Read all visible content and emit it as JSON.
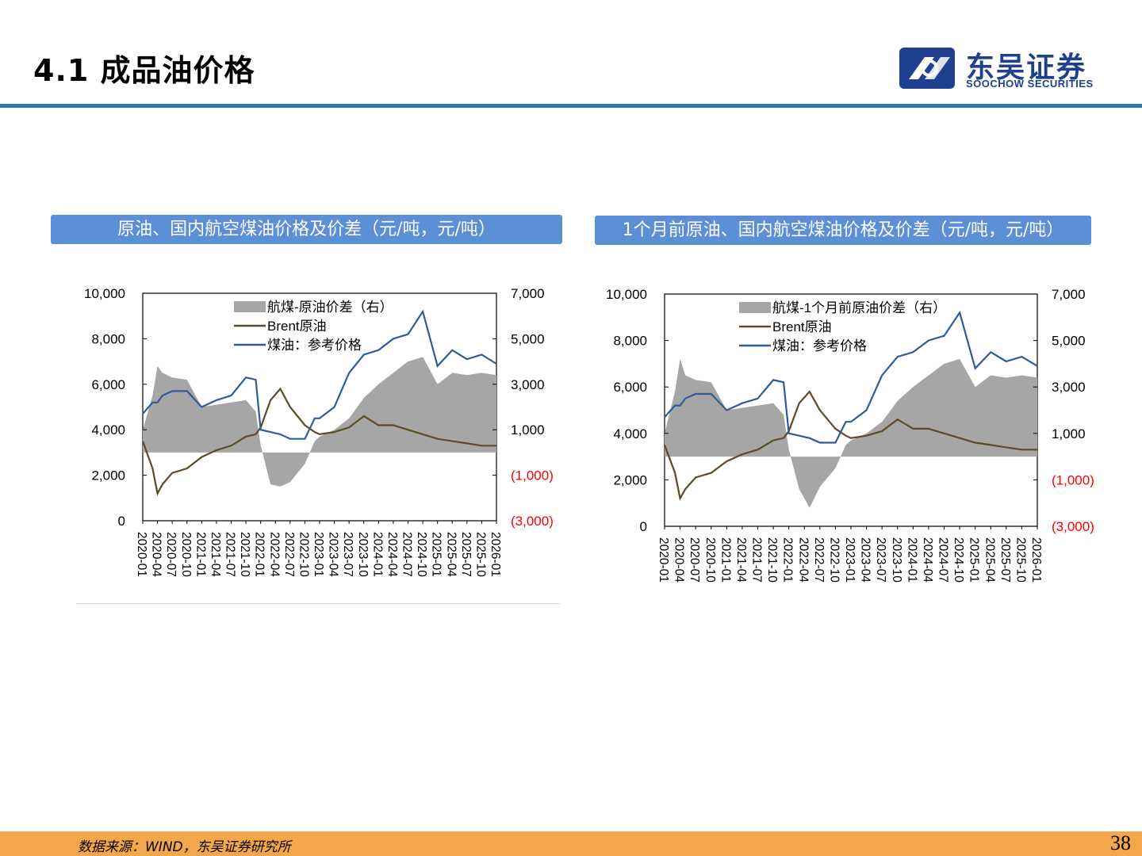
{
  "header": {
    "title": "4.1 成品油价格",
    "logo_cn": "东吴证券",
    "logo_en": "SOOCHOW SECURITIES"
  },
  "colors": {
    "accent_blue": "#2e75b6",
    "header_box": "#5b8fd6",
    "footer": "#f4a64a",
    "spread": "#a6a6a6",
    "brent": "#5c4a2a",
    "jet": "#2f5b9a",
    "negative": "#ff0000"
  },
  "charts": [
    {
      "header": "原油、国内航空煤油价格及价差（元/吨，元/吨）",
      "legend": [
        "航煤-原油价差（右）",
        "Brent原油",
        "煤油：参考价格"
      ],
      "left_ticks": [
        "10,000",
        "8,000",
        "6,000",
        "4,000",
        "2,000",
        "0"
      ],
      "right_ticks": [
        "7,000",
        "5,000",
        "3,000",
        "1,000",
        "(1,000)",
        "(3,000)"
      ],
      "x_ticks": [
        "2020-01",
        "2020-04",
        "2020-07",
        "2020-10",
        "2021-01",
        "2021-04",
        "2021-07",
        "2021-10",
        "2022-01",
        "2022-04",
        "2022-07",
        "2022-10",
        "2023-01",
        "2023-04",
        "2023-07",
        "2023-10",
        "2024-01",
        "2024-04",
        "2024-07",
        "2024-10",
        "2025-01",
        "2025-04",
        "2025-07",
        "2025-10",
        "2026-01"
      ]
    },
    {
      "header": "1个月前原油、国内航空煤油价格及价差（元/吨，元/吨）",
      "legend": [
        "航煤-1个月前原油价差（右）",
        "Brent原油",
        "煤油：参考价格"
      ],
      "left_ticks": [
        "10,000",
        "8,000",
        "6,000",
        "4,000",
        "2,000",
        "0"
      ],
      "right_ticks": [
        "7,000",
        "5,000",
        "3,000",
        "1,000",
        "(1,000)",
        "(3,000)"
      ],
      "x_ticks": [
        "2020-01",
        "2020-04",
        "2020-07",
        "2020-10",
        "2021-01",
        "2021-04",
        "2021-07",
        "2021-10",
        "2022-01",
        "2022-04",
        "2022-07",
        "2022-10",
        "2023-01",
        "2023-04",
        "2023-07",
        "2023-10",
        "2024-01",
        "2024-04",
        "2024-07",
        "2024-10",
        "2025-01",
        "2025-04",
        "2025-07",
        "2025-10",
        "2026-01"
      ]
    }
  ],
  "chart_data": [
    {
      "type": "line",
      "title": "原油、国内航空煤油价格及价差（元/吨，元/吨）",
      "x": [
        "2020-01",
        "2020-03",
        "2020-04",
        "2020-05",
        "2020-07",
        "2020-10",
        "2021-01",
        "2021-04",
        "2021-07",
        "2021-10",
        "2021-12",
        "2022-01",
        "2022-03",
        "2022-05",
        "2022-07",
        "2022-10",
        "2022-12",
        "2023-01",
        "2023-04",
        "2023-07",
        "2023-10",
        "2024-01",
        "2024-04",
        "2024-07",
        "2024-10",
        "2025-01",
        "2025-04",
        "2025-07",
        "2025-10",
        "2026-01"
      ],
      "ylim": [
        0,
        10000
      ],
      "y2lim": [
        -3000,
        7000
      ],
      "series": [
        {
          "name": "Brent原油",
          "axis": "left",
          "values": [
            3500,
            2300,
            1200,
            1600,
            2100,
            2300,
            2800,
            3100,
            3300,
            3700,
            3800,
            4100,
            5300,
            5800,
            5000,
            4200,
            3900,
            3800,
            3900,
            4100,
            4600,
            4200,
            4200,
            4000,
            3800,
            3600,
            3500,
            3400,
            3300,
            3300
          ]
        },
        {
          "name": "煤油：参考价格",
          "axis": "left",
          "values": [
            4700,
            5200,
            5200,
            5500,
            5700,
            5700,
            5000,
            5300,
            5500,
            6300,
            6200,
            4000,
            3900,
            3800,
            3600,
            3600,
            4500,
            4500,
            5000,
            6500,
            7300,
            7500,
            8000,
            8200,
            9200,
            6800,
            7500,
            7100,
            7300,
            6900
          ]
        },
        {
          "name": "航煤-原油价差（右）",
          "axis": "right",
          "values": [
            1000,
            2500,
            3800,
            3500,
            3300,
            3200,
            2000,
            2100,
            2200,
            2300,
            1800,
            300,
            -1400,
            -1500,
            -1300,
            -500,
            500,
            700,
            1000,
            1500,
            2400,
            3000,
            3500,
            4000,
            4200,
            3000,
            3500,
            3400,
            3500,
            3400
          ]
        }
      ]
    },
    {
      "type": "line",
      "title": "1个月前原油、国内航空煤油价格及价差（元/吨，元/吨）",
      "x": [
        "2020-01",
        "2020-03",
        "2020-04",
        "2020-05",
        "2020-07",
        "2020-10",
        "2021-01",
        "2021-04",
        "2021-07",
        "2021-10",
        "2021-12",
        "2022-01",
        "2022-03",
        "2022-05",
        "2022-07",
        "2022-10",
        "2022-12",
        "2023-01",
        "2023-04",
        "2023-07",
        "2023-10",
        "2024-01",
        "2024-04",
        "2024-07",
        "2024-10",
        "2025-01",
        "2025-04",
        "2025-07",
        "2025-10",
        "2026-01"
      ],
      "ylim": [
        0,
        10000
      ],
      "y2lim": [
        -3000,
        7000
      ],
      "series": [
        {
          "name": "Brent原油",
          "axis": "left",
          "values": [
            3500,
            2300,
            1200,
            1600,
            2100,
            2300,
            2800,
            3100,
            3300,
            3700,
            3800,
            4100,
            5300,
            5800,
            5000,
            4200,
            3900,
            3800,
            3900,
            4100,
            4600,
            4200,
            4200,
            4000,
            3800,
            3600,
            3500,
            3400,
            3300,
            3300
          ]
        },
        {
          "name": "煤油：参考价格",
          "axis": "left",
          "values": [
            4700,
            5200,
            5200,
            5500,
            5700,
            5700,
            5000,
            5300,
            5500,
            6300,
            6200,
            4000,
            3900,
            3800,
            3600,
            3600,
            4500,
            4500,
            5000,
            6500,
            7300,
            7500,
            8000,
            8200,
            9200,
            6800,
            7500,
            7100,
            7300,
            6900
          ]
        },
        {
          "name": "航煤-1个月前原油价差（右）",
          "axis": "right",
          "values": [
            1000,
            2800,
            4200,
            3500,
            3300,
            3200,
            2000,
            2100,
            2200,
            2300,
            1800,
            300,
            -1400,
            -2200,
            -1300,
            -500,
            500,
            700,
            1000,
            1500,
            2400,
            3000,
            3500,
            4000,
            4200,
            3000,
            3500,
            3400,
            3500,
            3400
          ]
        }
      ]
    }
  ],
  "footer": {
    "source": "数据来源：WIND，东吴证券研究所",
    "page": "38"
  }
}
